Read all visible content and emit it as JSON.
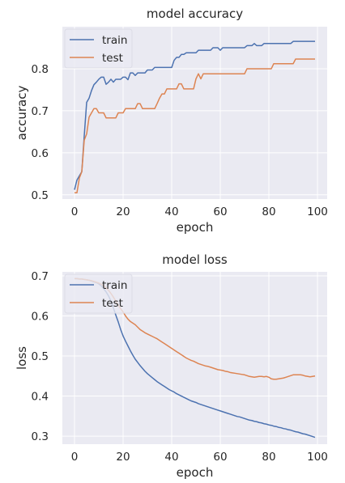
{
  "chart_data": [
    {
      "type": "line",
      "title": "model accuracy",
      "xlabel": "epoch",
      "ylabel": "accuracy",
      "xlim": [
        -5,
        104
      ],
      "ylim": [
        0.49,
        0.9
      ],
      "xticks": [
        0,
        20,
        40,
        60,
        80,
        100
      ],
      "yticks": [
        0.5,
        0.6,
        0.7,
        0.8
      ],
      "ytick_labels": [
        "0.5",
        "0.6",
        "0.7",
        "0.8"
      ],
      "grid": true,
      "legend": "upper left",
      "series": [
        {
          "name": "train",
          "color": "#4c72b0",
          "x": [
            0,
            1,
            2,
            3,
            4,
            5,
            6,
            7,
            8,
            9,
            10,
            11,
            12,
            13,
            14,
            15,
            16,
            17,
            18,
            19,
            20,
            21,
            22,
            23,
            24,
            25,
            26,
            27,
            28,
            29,
            30,
            31,
            32,
            33,
            34,
            35,
            36,
            37,
            38,
            39,
            40,
            41,
            42,
            43,
            44,
            45,
            46,
            47,
            48,
            49,
            50,
            51,
            52,
            53,
            54,
            55,
            56,
            57,
            58,
            59,
            60,
            61,
            62,
            63,
            64,
            65,
            66,
            67,
            68,
            69,
            70,
            71,
            72,
            73,
            74,
            75,
            76,
            77,
            78,
            79,
            80,
            81,
            82,
            83,
            84,
            85,
            86,
            87,
            88,
            89,
            90,
            91,
            92,
            93,
            94,
            95,
            96,
            97,
            98,
            99
          ],
          "y": [
            0.512,
            0.535,
            0.545,
            0.555,
            0.64,
            0.72,
            0.73,
            0.748,
            0.762,
            0.768,
            0.775,
            0.78,
            0.78,
            0.763,
            0.768,
            0.775,
            0.768,
            0.775,
            0.775,
            0.775,
            0.78,
            0.78,
            0.774,
            0.79,
            0.79,
            0.784,
            0.79,
            0.79,
            0.79,
            0.79,
            0.797,
            0.797,
            0.797,
            0.803,
            0.803,
            0.803,
            0.803,
            0.803,
            0.803,
            0.803,
            0.803,
            0.82,
            0.827,
            0.827,
            0.834,
            0.834,
            0.838,
            0.838,
            0.838,
            0.838,
            0.838,
            0.844,
            0.844,
            0.844,
            0.844,
            0.844,
            0.844,
            0.85,
            0.85,
            0.85,
            0.844,
            0.85,
            0.85,
            0.85,
            0.85,
            0.85,
            0.85,
            0.85,
            0.85,
            0.85,
            0.85,
            0.855,
            0.855,
            0.855,
            0.86,
            0.855,
            0.855,
            0.855,
            0.86,
            0.86,
            0.86,
            0.86,
            0.86,
            0.86,
            0.86,
            0.86,
            0.86,
            0.86,
            0.86,
            0.86,
            0.865,
            0.865,
            0.865,
            0.865,
            0.865,
            0.865,
            0.865,
            0.865,
            0.865,
            0.865
          ]
        },
        {
          "name": "test",
          "color": "#dd8452",
          "x": [
            0,
            1,
            2,
            3,
            4,
            5,
            6,
            7,
            8,
            9,
            10,
            11,
            12,
            13,
            14,
            15,
            16,
            17,
            18,
            19,
            20,
            21,
            22,
            23,
            24,
            25,
            26,
            27,
            28,
            29,
            30,
            31,
            32,
            33,
            34,
            35,
            36,
            37,
            38,
            39,
            40,
            41,
            42,
            43,
            44,
            45,
            46,
            47,
            48,
            49,
            50,
            51,
            52,
            53,
            54,
            55,
            56,
            57,
            58,
            59,
            60,
            61,
            62,
            63,
            64,
            65,
            66,
            67,
            68,
            69,
            70,
            71,
            72,
            73,
            74,
            75,
            76,
            77,
            78,
            79,
            80,
            81,
            82,
            83,
            84,
            85,
            86,
            87,
            88,
            89,
            90,
            91,
            92,
            93,
            94,
            95,
            96,
            97,
            98,
            99
          ],
          "y": [
            0.505,
            0.505,
            0.54,
            0.555,
            0.63,
            0.645,
            0.685,
            0.695,
            0.705,
            0.705,
            0.695,
            0.695,
            0.695,
            0.683,
            0.683,
            0.683,
            0.683,
            0.683,
            0.695,
            0.695,
            0.695,
            0.705,
            0.705,
            0.705,
            0.705,
            0.705,
            0.717,
            0.717,
            0.705,
            0.705,
            0.705,
            0.705,
            0.705,
            0.705,
            0.717,
            0.73,
            0.74,
            0.74,
            0.752,
            0.752,
            0.752,
            0.752,
            0.752,
            0.764,
            0.764,
            0.752,
            0.752,
            0.752,
            0.752,
            0.752,
            0.776,
            0.788,
            0.776,
            0.788,
            0.788,
            0.788,
            0.788,
            0.788,
            0.788,
            0.788,
            0.788,
            0.788,
            0.788,
            0.788,
            0.788,
            0.788,
            0.788,
            0.788,
            0.788,
            0.788,
            0.788,
            0.8,
            0.8,
            0.8,
            0.8,
            0.8,
            0.8,
            0.8,
            0.8,
            0.8,
            0.8,
            0.8,
            0.812,
            0.812,
            0.812,
            0.812,
            0.812,
            0.812,
            0.812,
            0.812,
            0.812,
            0.823,
            0.823,
            0.823,
            0.823,
            0.823,
            0.823,
            0.823,
            0.823,
            0.823
          ]
        }
      ]
    },
    {
      "type": "line",
      "title": "model loss",
      "xlabel": "epoch",
      "ylabel": "loss",
      "xlim": [
        -5,
        104
      ],
      "ylim": [
        0.28,
        0.71
      ],
      "xticks": [
        0,
        20,
        40,
        60,
        80,
        100
      ],
      "yticks": [
        0.3,
        0.4,
        0.5,
        0.6,
        0.7
      ],
      "ytick_labels": [
        "0.3",
        "0.4",
        "0.5",
        "0.6",
        "0.7"
      ],
      "grid": true,
      "legend": "upper left",
      "series": [
        {
          "name": "train",
          "color": "#4c72b0",
          "x": [
            0,
            1,
            2,
            3,
            4,
            5,
            6,
            7,
            8,
            9,
            10,
            11,
            12,
            13,
            14,
            15,
            16,
            17,
            18,
            19,
            20,
            21,
            22,
            23,
            24,
            25,
            26,
            27,
            28,
            29,
            30,
            31,
            32,
            33,
            34,
            35,
            36,
            37,
            38,
            39,
            40,
            41,
            42,
            43,
            44,
            45,
            46,
            47,
            48,
            49,
            50,
            51,
            52,
            53,
            54,
            55,
            56,
            57,
            58,
            59,
            60,
            61,
            62,
            63,
            64,
            65,
            66,
            67,
            68,
            69,
            70,
            71,
            72,
            73,
            74,
            75,
            76,
            77,
            78,
            79,
            80,
            81,
            82,
            83,
            84,
            85,
            86,
            87,
            88,
            89,
            90,
            91,
            92,
            93,
            94,
            95,
            96,
            97,
            98,
            99
          ],
          "y": [
            0.693,
            0.693,
            0.692,
            0.692,
            0.691,
            0.69,
            0.689,
            0.687,
            0.685,
            0.683,
            0.68,
            0.675,
            0.668,
            0.66,
            0.65,
            0.637,
            0.62,
            0.602,
            0.585,
            0.566,
            0.55,
            0.537,
            0.525,
            0.513,
            0.502,
            0.492,
            0.484,
            0.476,
            0.469,
            0.462,
            0.456,
            0.451,
            0.446,
            0.441,
            0.436,
            0.432,
            0.428,
            0.424,
            0.42,
            0.416,
            0.413,
            0.41,
            0.406,
            0.403,
            0.4,
            0.397,
            0.394,
            0.391,
            0.388,
            0.386,
            0.384,
            0.381,
            0.379,
            0.377,
            0.375,
            0.373,
            0.371,
            0.369,
            0.367,
            0.365,
            0.363,
            0.361,
            0.359,
            0.357,
            0.355,
            0.353,
            0.351,
            0.349,
            0.348,
            0.346,
            0.344,
            0.342,
            0.34,
            0.339,
            0.337,
            0.336,
            0.334,
            0.333,
            0.331,
            0.33,
            0.328,
            0.327,
            0.325,
            0.324,
            0.322,
            0.321,
            0.319,
            0.318,
            0.316,
            0.315,
            0.313,
            0.311,
            0.31,
            0.308,
            0.306,
            0.305,
            0.303,
            0.301,
            0.299,
            0.297
          ]
        },
        {
          "name": "test",
          "color": "#dd8452",
          "x": [
            0,
            1,
            2,
            3,
            4,
            5,
            6,
            7,
            8,
            9,
            10,
            11,
            12,
            13,
            14,
            15,
            16,
            17,
            18,
            19,
            20,
            21,
            22,
            23,
            24,
            25,
            26,
            27,
            28,
            29,
            30,
            31,
            32,
            33,
            34,
            35,
            36,
            37,
            38,
            39,
            40,
            41,
            42,
            43,
            44,
            45,
            46,
            47,
            48,
            49,
            50,
            51,
            52,
            53,
            54,
            55,
            56,
            57,
            58,
            59,
            60,
            61,
            62,
            63,
            64,
            65,
            66,
            67,
            68,
            69,
            70,
            71,
            72,
            73,
            74,
            75,
            76,
            77,
            78,
            79,
            80,
            81,
            82,
            83,
            84,
            85,
            86,
            87,
            88,
            89,
            90,
            91,
            92,
            93,
            94,
            95,
            96,
            97,
            98,
            99
          ],
          "y": [
            0.693,
            0.693,
            0.692,
            0.692,
            0.691,
            0.69,
            0.689,
            0.688,
            0.686,
            0.684,
            0.682,
            0.679,
            0.675,
            0.67,
            0.664,
            0.656,
            0.647,
            0.637,
            0.627,
            0.618,
            0.61,
            0.6,
            0.592,
            0.586,
            0.582,
            0.578,
            0.572,
            0.566,
            0.562,
            0.558,
            0.555,
            0.552,
            0.549,
            0.546,
            0.543,
            0.539,
            0.535,
            0.531,
            0.527,
            0.523,
            0.519,
            0.515,
            0.511,
            0.507,
            0.503,
            0.499,
            0.495,
            0.492,
            0.489,
            0.487,
            0.484,
            0.481,
            0.479,
            0.477,
            0.475,
            0.474,
            0.472,
            0.47,
            0.468,
            0.466,
            0.465,
            0.464,
            0.462,
            0.461,
            0.459,
            0.458,
            0.457,
            0.456,
            0.455,
            0.454,
            0.453,
            0.451,
            0.449,
            0.448,
            0.447,
            0.448,
            0.449,
            0.449,
            0.448,
            0.449,
            0.447,
            0.443,
            0.442,
            0.442,
            0.443,
            0.444,
            0.445,
            0.447,
            0.449,
            0.451,
            0.453,
            0.453,
            0.453,
            0.453,
            0.452,
            0.45,
            0.449,
            0.448,
            0.449,
            0.45
          ]
        }
      ]
    }
  ]
}
